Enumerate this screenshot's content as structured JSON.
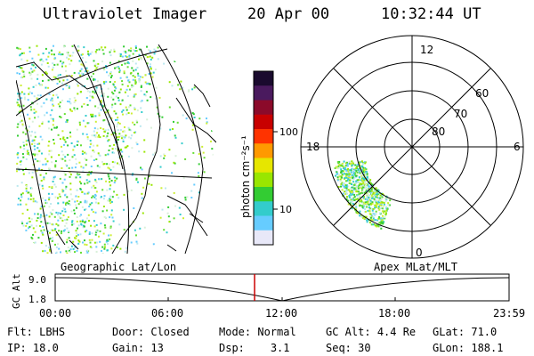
{
  "header": {
    "instrument": "Ultraviolet Imager",
    "date": "20 Apr 00",
    "time": "10:32:44 UT"
  },
  "geo_map": {
    "label": "Geographic Lat/Lon"
  },
  "colorbar": {
    "unit_label": "photon cm⁻²s⁻¹",
    "ticks": [
      "100",
      "10"
    ],
    "colors": [
      "#1a0a2e",
      "#4a1a5e",
      "#8b0a2a",
      "#c80000",
      "#ff3300",
      "#ff9900",
      "#e6e600",
      "#99e600",
      "#33cc33",
      "#33cccc",
      "#66ccff",
      "#e8e8f8"
    ]
  },
  "polar": {
    "label": "Apex MLat/MLT",
    "mlt_labels": {
      "top": "12",
      "left": "18",
      "right": "6",
      "bottom": "0"
    },
    "lat_labels": [
      "60",
      "70",
      "80"
    ]
  },
  "timeline": {
    "ylabel": "GC Alt",
    "ytick_top": "9.0",
    "ytick_bottom": "1.8",
    "xticks": [
      "00:00",
      "06:00",
      "12:00",
      "18:00",
      "23:59"
    ],
    "current_time_fraction": 0.4393
  },
  "info": {
    "row1": [
      {
        "label": "Flt:",
        "value": "LBHS"
      },
      {
        "label": "Door:",
        "value": "Closed"
      },
      {
        "label": "Mode:",
        "value": "Normal"
      },
      {
        "label": "GC Alt:",
        "value": "4.4 Re"
      },
      {
        "label": "GLat:",
        "value": "71.0"
      }
    ],
    "row2": [
      {
        "label": "IP:",
        "value": "18.0"
      },
      {
        "label": "Gain:",
        "value": "13"
      },
      {
        "label": "Dsp:",
        "value": "3.1"
      },
      {
        "label": "Seq:",
        "value": "30"
      },
      {
        "label": "GLon:",
        "value": "188.1"
      }
    ]
  }
}
